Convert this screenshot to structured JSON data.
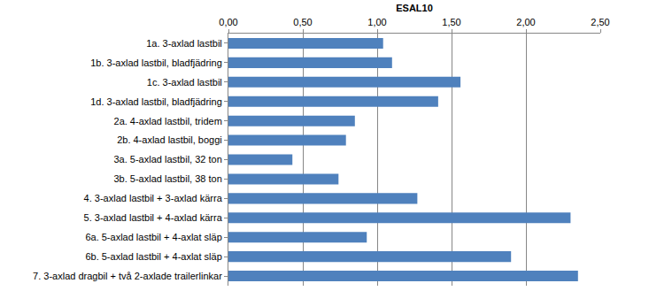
{
  "chart_data": {
    "type": "bar",
    "orientation": "horizontal",
    "title": "ESAL10",
    "categories": [
      "1a. 3-axlad lastbil",
      "1b. 3-axlad lastbil, bladfjädring",
      "1c. 3-axlad lastbil",
      "1d. 3-axlad lastbil, bladfjädring",
      "2a. 4-axlad lastbil, tridem",
      "2b. 4-axlad lastbil, boggi",
      "3a. 5-axlad lastbil, 32 ton",
      "3b. 5-axlad lastbil, 38 ton",
      "4. 3-axlad lastbil + 3-axlad kärra",
      "5. 3-axlad lastbil + 4-axlad kärra",
      "6a. 5-axlad lastbil + 4-axlat släp",
      "6b. 5-axlad lastbil + 4-axlat släp",
      "7. 3-axlad dragbil + två 2-axlade trailerlinkar"
    ],
    "values": [
      1.04,
      1.1,
      1.56,
      1.41,
      0.85,
      0.79,
      0.43,
      0.74,
      1.27,
      2.3,
      0.93,
      1.9,
      2.35
    ],
    "color": "#4f81bd",
    "xlim": [
      0,
      2.5
    ],
    "xticks": [
      {
        "value": 0,
        "label": "0,00"
      },
      {
        "value": 0.5,
        "label": "0,50"
      },
      {
        "value": 1,
        "label": "1,00"
      },
      {
        "value": 1.5,
        "label": "1,50"
      },
      {
        "value": 2,
        "label": "2,00"
      },
      {
        "value": 2.5,
        "label": "2,50"
      }
    ],
    "grid": true
  }
}
